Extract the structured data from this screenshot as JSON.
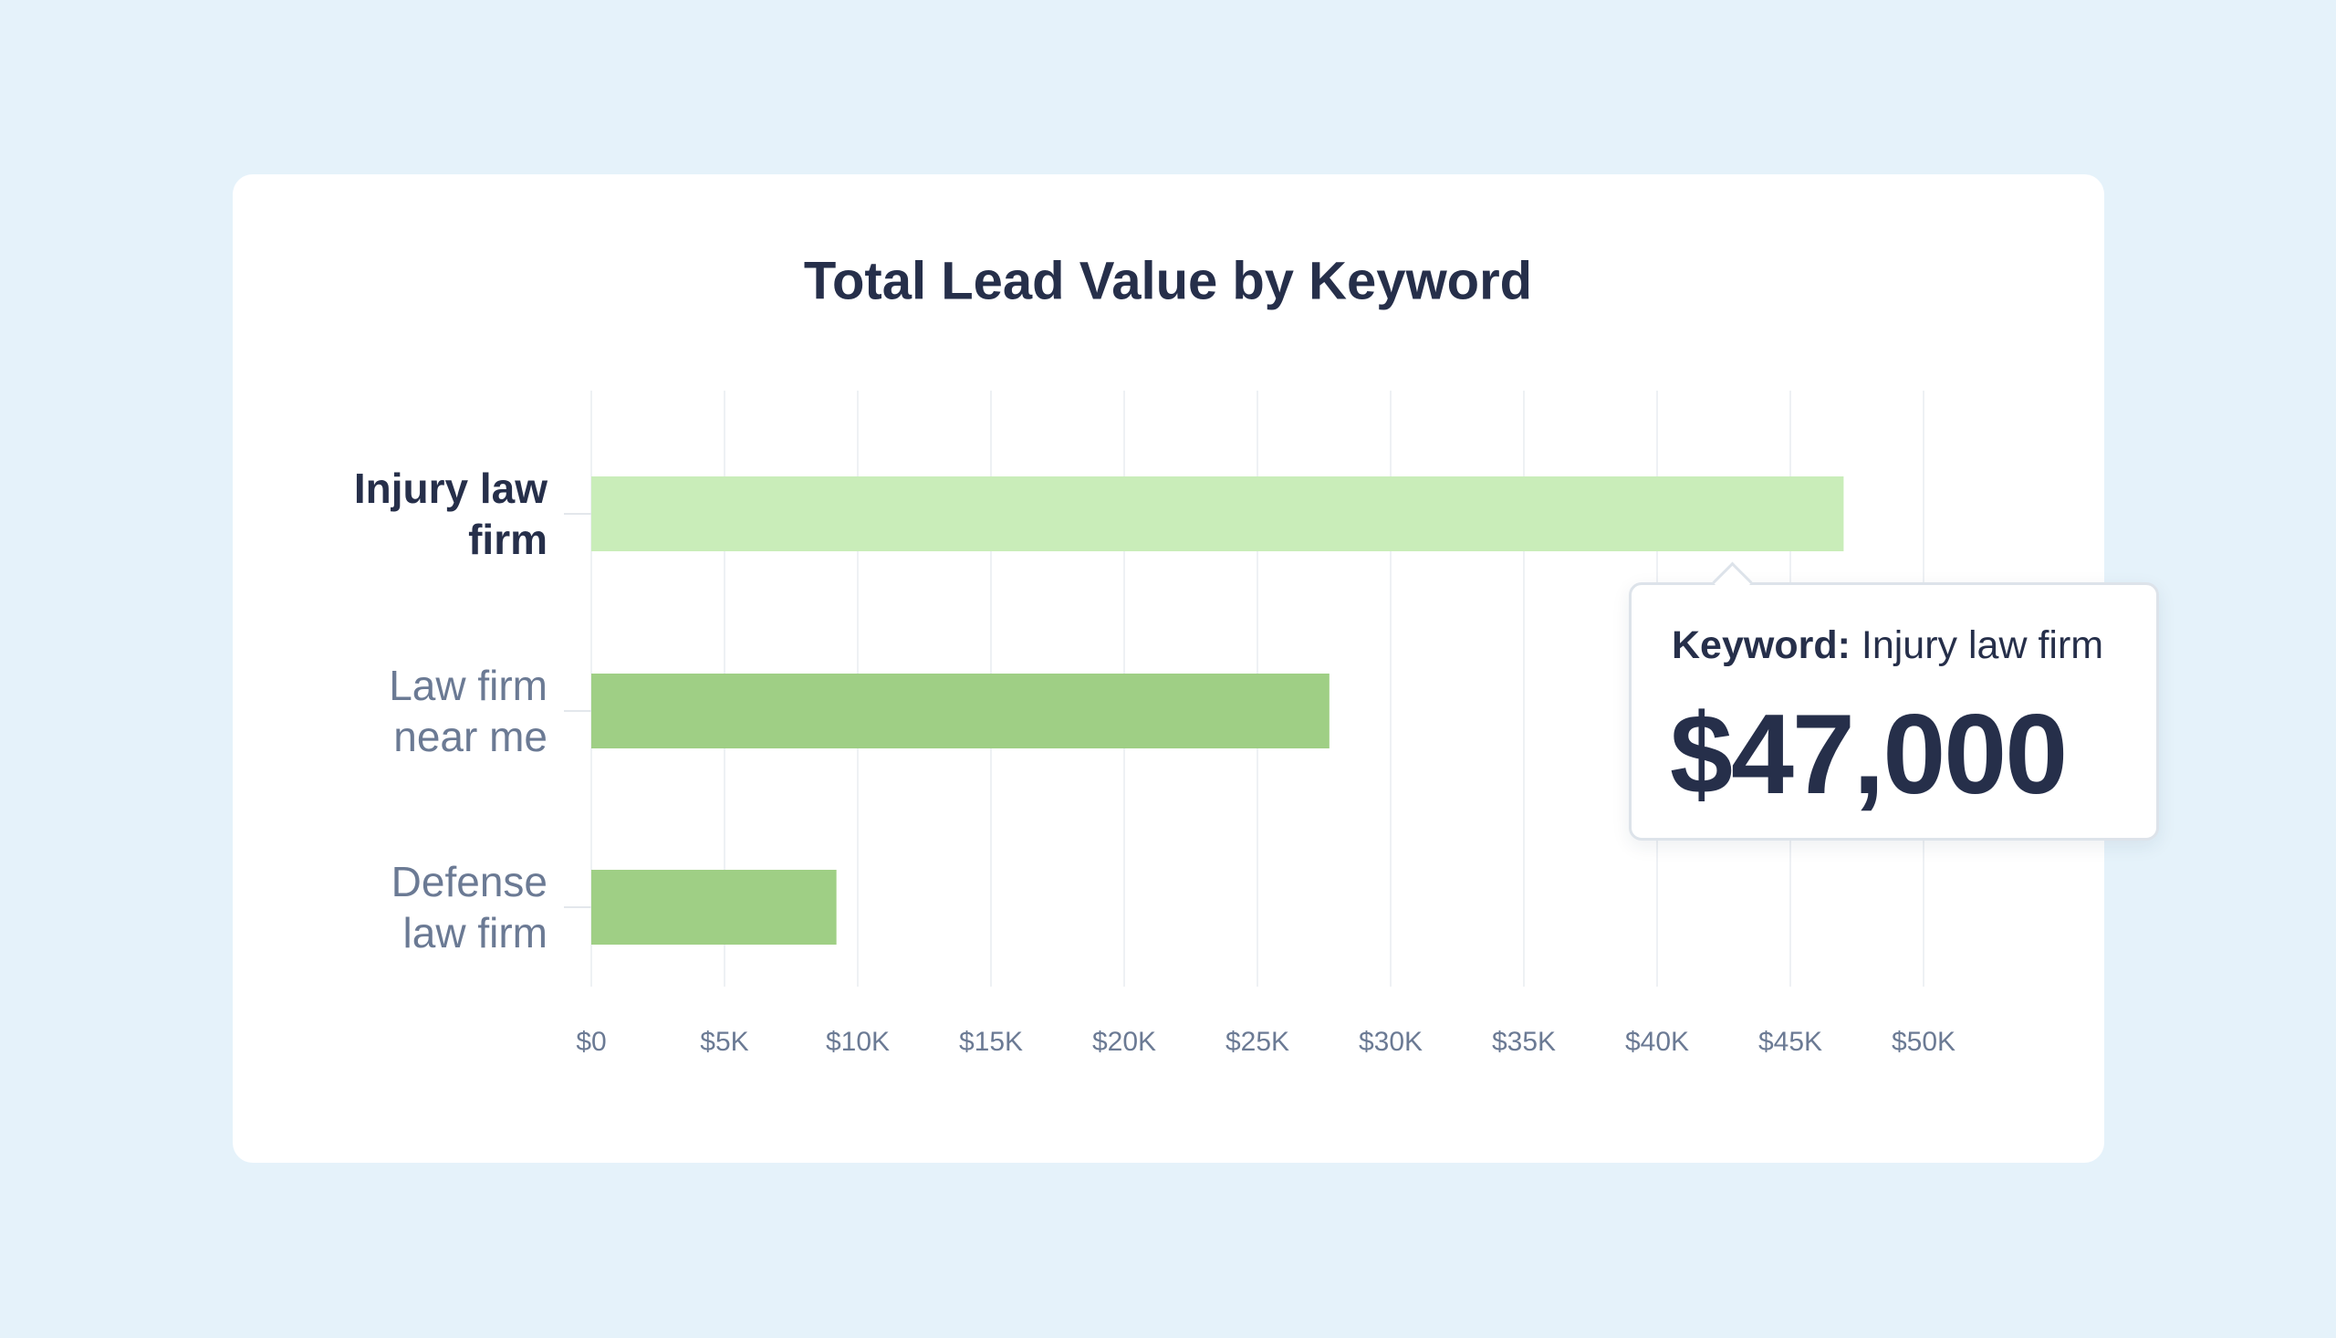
{
  "chart_data": {
    "type": "hbar",
    "title": "Total Lead Value by Keyword",
    "categories": [
      "Injury law firm",
      "Law firm near me",
      "Defense law firm"
    ],
    "values": [
      47000,
      27700,
      9200
    ],
    "value_labels": [
      "$47,000",
      null,
      null
    ],
    "tooltip_label": "Keyword:",
    "highlight": 0,
    "color": "#9fcf85",
    "highlight_color": "#c9edb9",
    "xlim": [
      0,
      50000
    ],
    "xticks": [
      {
        "value": 0,
        "label": "$0"
      },
      {
        "value": 5000,
        "label": "$5K"
      },
      {
        "value": 10000,
        "label": "$10K"
      },
      {
        "value": 15000,
        "label": "$15K"
      },
      {
        "value": 20000,
        "label": "$20K"
      },
      {
        "value": 25000,
        "label": "$25K"
      },
      {
        "value": 30000,
        "label": "$30K"
      },
      {
        "value": 35000,
        "label": "$35K"
      },
      {
        "value": 40000,
        "label": "$40K"
      },
      {
        "value": 45000,
        "label": "$45K"
      },
      {
        "value": 50000,
        "label": "$50K"
      }
    ],
    "grid": true
  }
}
